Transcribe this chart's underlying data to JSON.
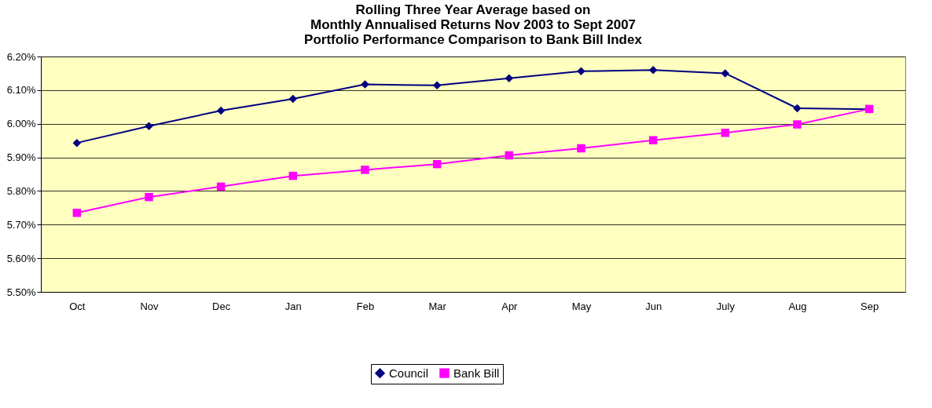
{
  "chart_data": {
    "type": "line",
    "title": [
      "Rolling Three Year Average based on",
      "Monthly Annualised Returns Nov 2003 to Sept 2007",
      "Portfolio Performance Comparison to Bank Bill Index"
    ],
    "categories": [
      "Oct",
      "Nov",
      "Dec",
      "Jan",
      "Feb",
      "Mar",
      "Apr",
      "May",
      "Jun",
      "July",
      "Aug",
      "Sep"
    ],
    "series": [
      {
        "name": "Council",
        "color": "#000080",
        "marker": "diamond",
        "values": [
          5.943,
          5.993,
          6.039,
          6.074,
          6.117,
          6.114,
          6.135,
          6.156,
          6.16,
          6.15,
          6.046,
          6.043
        ]
      },
      {
        "name": "Bank Bill",
        "color": "#ff00ff",
        "marker": "square",
        "values": [
          5.735,
          5.782,
          5.813,
          5.845,
          5.863,
          5.88,
          5.906,
          5.927,
          5.951,
          5.973,
          5.998,
          6.044
        ]
      }
    ],
    "ylim": [
      5.5,
      6.2
    ],
    "yticks": [
      {
        "value": 5.5,
        "label": "5.50%"
      },
      {
        "value": 5.6,
        "label": "5.60%"
      },
      {
        "value": 5.7,
        "label": "5.70%"
      },
      {
        "value": 5.8,
        "label": "5.80%"
      },
      {
        "value": 5.9,
        "label": "5.90%"
      },
      {
        "value": 6.0,
        "label": "6.00%"
      },
      {
        "value": 6.1,
        "label": "6.10%"
      },
      {
        "value": 6.2,
        "label": "6.20%"
      }
    ],
    "grid": "y",
    "legend": "bottom",
    "line_style": "solid"
  }
}
